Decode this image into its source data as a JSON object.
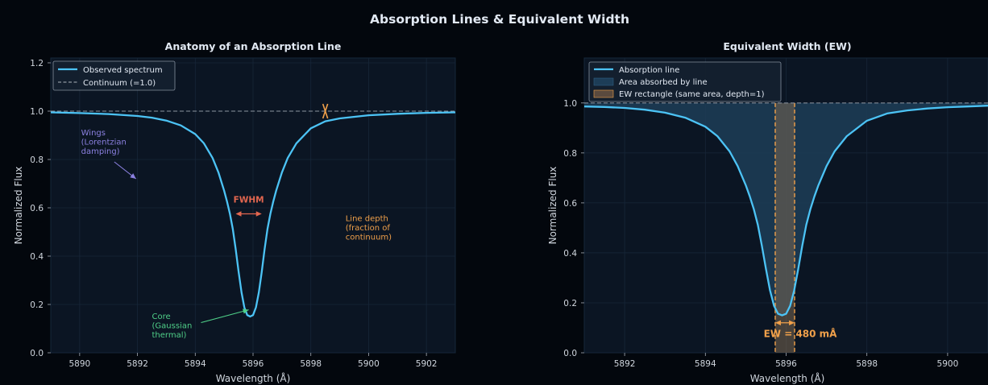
{
  "figure": {
    "title": "Absorption Lines & Equivalent Width",
    "colors": {
      "background": "#03070d",
      "panel": "#0b1523",
      "text": "#e2e9f3",
      "line": "#4cc3f5",
      "continuum": "#8e96a0",
      "accent": "#f0a04a",
      "fwhm": "#e2664f",
      "wings": "#8b80e0",
      "core": "#4fcf88"
    }
  },
  "chart_data": [
    {
      "type": "line",
      "title": "Anatomy of an Absorption Line",
      "xlabel": "Wavelength (Å)",
      "ylabel": "Normalized Flux",
      "xlim": [
        5889.0,
        5903.0
      ],
      "ylim": [
        0.0,
        1.22
      ],
      "xticks": [
        5890,
        5892,
        5894,
        5896,
        5898,
        5900,
        5902
      ],
      "yticks": [
        0.0,
        0.2,
        0.4,
        0.6,
        0.8,
        1.0,
        1.2
      ],
      "x_tick_labels": [
        "5890",
        "5892",
        "5894",
        "5896",
        "5898",
        "5900",
        "5902"
      ],
      "y_tick_labels": [
        "0.0",
        "0.2",
        "0.4",
        "0.6",
        "0.8",
        "1.0",
        "1.2"
      ],
      "grid": true,
      "legend_position": "top-left",
      "series": [
        {
          "name": "Observed spectrum",
          "style": "solid",
          "color": "#4cc3f5",
          "x": [
            5889.0,
            5890.0,
            5891.0,
            5892.0,
            5892.5,
            5893.0,
            5893.5,
            5894.0,
            5894.3,
            5894.6,
            5894.8,
            5895.0,
            5895.1,
            5895.2,
            5895.3,
            5895.4,
            5895.5,
            5895.6,
            5895.7,
            5895.8,
            5895.9,
            5896.0,
            5896.1,
            5896.2,
            5896.3,
            5896.4,
            5896.5,
            5896.6,
            5896.7,
            5896.8,
            5897.0,
            5897.2,
            5897.5,
            5898.0,
            5898.5,
            5899.0,
            5900.0,
            5901.0,
            5902.0,
            5903.0
          ],
          "y": [
            0.995,
            0.992,
            0.988,
            0.98,
            0.973,
            0.961,
            0.941,
            0.905,
            0.867,
            0.806,
            0.747,
            0.671,
            0.626,
            0.575,
            0.512,
            0.428,
            0.335,
            0.25,
            0.188,
            0.156,
            0.15,
            0.156,
            0.188,
            0.25,
            0.335,
            0.428,
            0.512,
            0.575,
            0.626,
            0.671,
            0.747,
            0.806,
            0.867,
            0.929,
            0.958,
            0.97,
            0.983,
            0.989,
            0.993,
            0.995
          ]
        },
        {
          "name": "Continuum (=1.0)",
          "style": "dashed",
          "color": "#8e96a0",
          "x": [
            5889.0,
            5903.0
          ],
          "y": [
            1.0,
            1.0
          ]
        }
      ],
      "annotations": [
        {
          "text": "FWHM",
          "color": "#e2664f",
          "x": 5895.85,
          "y": 0.635,
          "bold": true,
          "arrow": "double",
          "arrow_from": [
            5895.4,
            0.575
          ],
          "arrow_to": [
            5896.3,
            0.575
          ]
        },
        {
          "text": "Wings\n(Lorentzian\ndamping)",
          "color": "#8b80e0",
          "x": 5890.05,
          "y": 0.9,
          "arrow": "single",
          "arrow_from": [
            5891.2,
            0.79
          ],
          "arrow_to": [
            5891.95,
            0.72
          ]
        },
        {
          "text": "Core\n(Gaussian\nthermal)",
          "color": "#4fcf88",
          "x": 5892.5,
          "y": 0.14,
          "arrow": "single",
          "arrow_from": [
            5894.2,
            0.125
          ],
          "arrow_to": [
            5895.85,
            0.178
          ]
        },
        {
          "text": "Line depth\n(fraction of\ncontinuum)",
          "color": "#f0a04a",
          "x": 5899.2,
          "y": 0.545,
          "arrow": "marker",
          "arrow_from": [
            5898.5,
            0.982
          ],
          "arrow_to": [
            5898.5,
            1.0
          ]
        }
      ]
    },
    {
      "type": "area",
      "title": "Equivalent Width (EW)",
      "xlabel": "Wavelength (Å)",
      "ylabel": "Normalized Flux",
      "xlim": [
        5891.0,
        5901.0
      ],
      "ylim": [
        0.0,
        1.18
      ],
      "xticks": [
        5892,
        5894,
        5896,
        5898,
        5900
      ],
      "yticks": [
        0.0,
        0.2,
        0.4,
        0.6,
        0.8,
        1.0
      ],
      "x_tick_labels": [
        "5892",
        "5894",
        "5896",
        "5898",
        "5900"
      ],
      "y_tick_labels": [
        "0.0",
        "0.2",
        "0.4",
        "0.6",
        "0.8",
        "1.0"
      ],
      "grid": true,
      "legend_position": "top-left",
      "continuum": 1.0,
      "ew_rectangle": {
        "x0": 5895.73,
        "x1": 5896.21,
        "depth": 1.0
      },
      "series": [
        {
          "name": "Absorption line",
          "style": "solid",
          "color": "#4cc3f5",
          "x": [
            5891.0,
            5891.5,
            5892.0,
            5892.5,
            5893.0,
            5893.5,
            5894.0,
            5894.3,
            5894.6,
            5894.8,
            5895.0,
            5895.1,
            5895.2,
            5895.3,
            5895.4,
            5895.5,
            5895.6,
            5895.7,
            5895.8,
            5895.9,
            5896.0,
            5896.1,
            5896.2,
            5896.3,
            5896.4,
            5896.5,
            5896.6,
            5896.7,
            5896.8,
            5897.0,
            5897.2,
            5897.5,
            5898.0,
            5898.5,
            5899.0,
            5899.5,
            5900.0,
            5900.5,
            5901.0
          ],
          "y": [
            0.986,
            0.984,
            0.98,
            0.973,
            0.961,
            0.941,
            0.905,
            0.867,
            0.806,
            0.747,
            0.671,
            0.626,
            0.575,
            0.512,
            0.428,
            0.335,
            0.25,
            0.188,
            0.156,
            0.15,
            0.156,
            0.188,
            0.25,
            0.335,
            0.428,
            0.512,
            0.575,
            0.626,
            0.671,
            0.747,
            0.806,
            0.867,
            0.929,
            0.958,
            0.97,
            0.978,
            0.983,
            0.986,
            0.989
          ]
        },
        {
          "name": "Area absorbed by line",
          "style": "fill",
          "color": "#1d3d57"
        },
        {
          "name": "EW rectangle (same area, depth=1)",
          "style": "rect",
          "color": "#f0a04a"
        }
      ],
      "annotations": [
        {
          "text": "EW = 480 mÅ",
          "color": "#f0a04a",
          "x": 5896.35,
          "y": 0.075,
          "bold": true,
          "arrow": "double",
          "arrow_from": [
            5895.73,
            0.12
          ],
          "arrow_to": [
            5896.21,
            0.12
          ]
        }
      ]
    }
  ]
}
